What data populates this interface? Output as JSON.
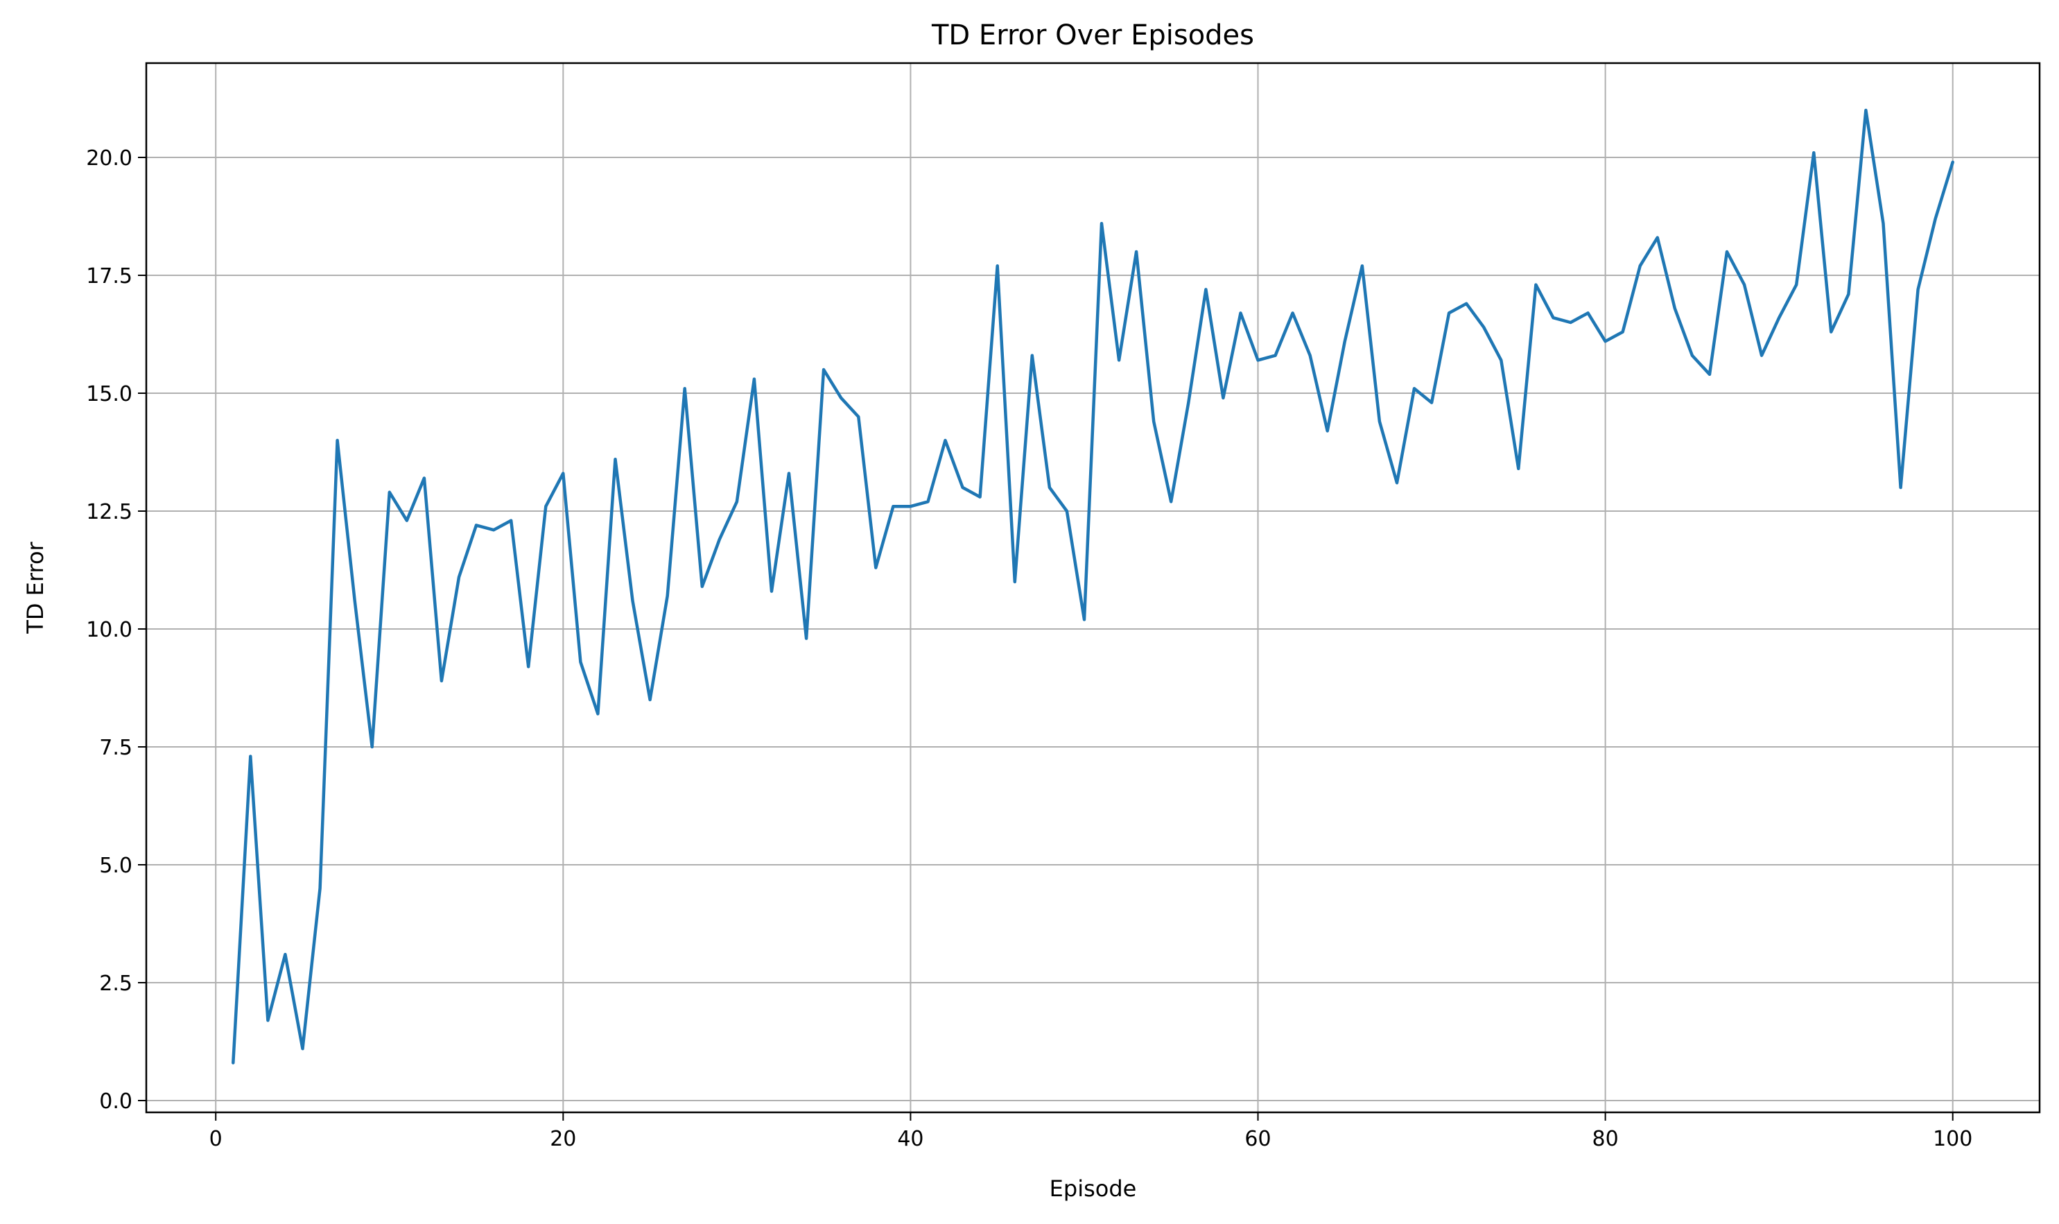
{
  "chart_data": {
    "type": "line",
    "title": "TD Error Over Episodes",
    "xlabel": "Episode",
    "ylabel": "TD Error",
    "xlim": [
      -4,
      105
    ],
    "ylim": [
      -0.25,
      22.0
    ],
    "xticks": [
      0,
      20,
      40,
      60,
      80,
      100
    ],
    "yticks": [
      0.0,
      2.5,
      5.0,
      7.5,
      10.0,
      12.5,
      15.0,
      17.5,
      20.0
    ],
    "xtick_labels": [
      "0",
      "20",
      "40",
      "60",
      "80",
      "100"
    ],
    "ytick_labels": [
      "0.0",
      "2.5",
      "5.0",
      "7.5",
      "10.0",
      "12.5",
      "15.0",
      "17.5",
      "20.0"
    ],
    "grid": true,
    "line_color": "#1f77b4",
    "grid_color": "#b0b0b0",
    "series": [
      {
        "x": [
          1,
          2,
          3,
          4,
          5,
          6,
          7,
          8,
          9,
          10,
          11,
          12,
          13,
          14,
          15,
          16,
          17,
          18,
          19,
          20,
          21,
          22,
          23,
          24,
          25,
          26,
          27,
          28,
          29,
          30,
          31,
          32,
          33,
          34,
          35,
          36,
          37,
          38,
          39,
          40,
          41,
          42,
          43,
          44,
          45,
          46,
          47,
          48,
          49,
          50,
          51,
          52,
          53,
          54,
          55,
          56,
          57,
          58,
          59,
          60,
          61,
          62,
          63,
          64,
          65,
          66,
          67,
          68,
          69,
          70,
          71,
          72,
          73,
          74,
          75,
          76,
          77,
          78,
          79,
          80,
          81,
          82,
          83,
          84,
          85,
          86,
          87,
          88,
          89,
          90,
          91,
          92,
          93,
          94,
          95,
          96,
          97,
          98,
          99,
          100
        ],
        "values": [
          0.8,
          7.3,
          1.7,
          3.1,
          1.1,
          4.5,
          14.0,
          10.6,
          7.5,
          12.9,
          12.3,
          13.2,
          8.9,
          11.1,
          12.2,
          12.1,
          12.3,
          9.2,
          12.6,
          13.3,
          9.3,
          8.2,
          13.6,
          10.6,
          8.5,
          10.7,
          15.1,
          10.9,
          11.9,
          12.7,
          15.3,
          10.8,
          13.3,
          9.8,
          15.5,
          14.9,
          14.5,
          11.3,
          12.6,
          12.6,
          12.7,
          14.0,
          13.0,
          12.8,
          17.7,
          11.0,
          15.8,
          13.0,
          12.5,
          10.2,
          18.6,
          15.7,
          18.0,
          14.4,
          12.7,
          14.8,
          17.2,
          14.9,
          16.7,
          15.7,
          15.8,
          16.7,
          15.8,
          14.2,
          16.1,
          17.7,
          14.4,
          13.1,
          15.1,
          14.8,
          16.7,
          16.9,
          16.4,
          15.7,
          13.4,
          17.3,
          16.6,
          16.5,
          16.7,
          16.1,
          16.3,
          17.7,
          18.3,
          16.8,
          15.8,
          15.4,
          18.0,
          17.3,
          15.8,
          16.6,
          17.3,
          20.1,
          16.3,
          17.1,
          21.0,
          18.6,
          13.0,
          17.2,
          18.7,
          19.9
        ]
      }
    ]
  }
}
